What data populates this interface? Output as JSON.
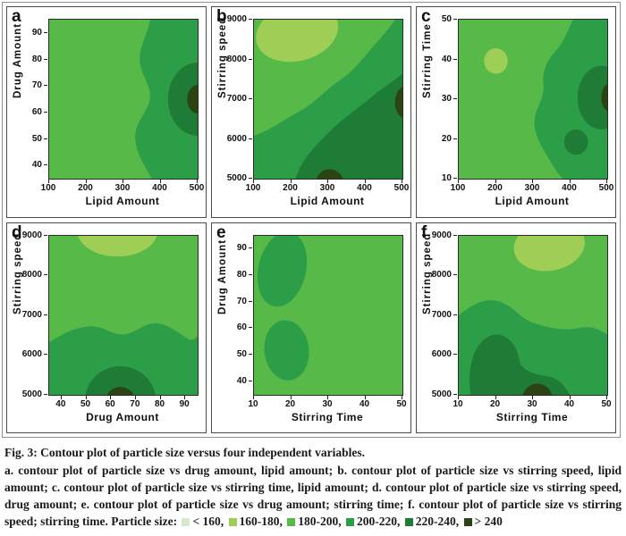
{
  "figure": {
    "panels": [
      {
        "letter": "a",
        "xlabel": "Lipid Amount",
        "ylabel": "Drug Amount",
        "xlim": [
          100,
          500
        ],
        "ylim": [
          35,
          95
        ],
        "xticks": [
          100,
          200,
          300,
          400,
          500
        ],
        "yticks": [
          40,
          50,
          60,
          70,
          80,
          90
        ]
      },
      {
        "letter": "b",
        "xlabel": "Lipid Amount",
        "ylabel": "Stirring speed",
        "xlim": [
          100,
          500
        ],
        "ylim": [
          5000,
          9000
        ],
        "xticks": [
          100,
          200,
          300,
          400,
          500
        ],
        "yticks": [
          5000,
          6000,
          7000,
          8000,
          9000
        ]
      },
      {
        "letter": "c",
        "xlabel": "Lipid Amount",
        "ylabel": "Stirring Time",
        "xlim": [
          100,
          500
        ],
        "ylim": [
          10,
          50
        ],
        "xticks": [
          100,
          200,
          300,
          400,
          500
        ],
        "yticks": [
          10,
          20,
          30,
          40,
          50
        ]
      },
      {
        "letter": "d",
        "xlabel": "Drug Amount",
        "ylabel": "Stirring speed",
        "xlim": [
          35,
          95
        ],
        "ylim": [
          5000,
          9000
        ],
        "xticks": [
          40,
          50,
          60,
          70,
          80,
          90
        ],
        "yticks": [
          5000,
          6000,
          7000,
          8000,
          9000
        ]
      },
      {
        "letter": "e",
        "xlabel": "Stirring Time",
        "ylabel": "Drug Amount",
        "xlim": [
          10,
          50
        ],
        "ylim": [
          35,
          95
        ],
        "xticks": [
          10,
          20,
          30,
          40,
          50
        ],
        "yticks": [
          40,
          50,
          60,
          70,
          80,
          90
        ]
      },
      {
        "letter": "f",
        "xlabel": "Stirring Time",
        "ylabel": "Stirring speed",
        "xlim": [
          10,
          50
        ],
        "ylim": [
          5000,
          9000
        ],
        "xticks": [
          10,
          20,
          30,
          40,
          50
        ],
        "yticks": [
          5000,
          6000,
          7000,
          8000,
          9000
        ]
      }
    ]
  },
  "legend": {
    "title": "Particle size:",
    "bins": [
      {
        "label": "< 160",
        "color": "#d7e8d0"
      },
      {
        "label": "160-180",
        "color": "#9fce56"
      },
      {
        "label": "180-200",
        "color": "#57ba48"
      },
      {
        "label": "200-220",
        "color": "#2d9e48"
      },
      {
        "label": "220-240",
        "color": "#1e7c37"
      },
      {
        "label": "> 240",
        "color": "#2c4314"
      }
    ]
  },
  "caption": {
    "title": "Fig. 3: Contour plot of particle size versus four independent variables.",
    "body": "a. contour plot of particle size vs drug amount, lipid amount; b. contour plot of particle size vs stirring speed, lipid amount; c. contour plot of particle size vs stirring time, lipid amount; d. contour plot of particle size vs stirring speed, drug amount; e. contour plot of particle size vs drug amount; stirring time; f. contour plot of particle size vs stirring speed; stirring time."
  },
  "chart_data": [
    {
      "type": "heatmap",
      "subtype": "contour",
      "panel": "a",
      "xlabel": "Lipid Amount",
      "ylabel": "Drug Amount",
      "xlim": [
        100,
        500
      ],
      "ylim": [
        35,
        95
      ],
      "xticks": [
        100,
        200,
        300,
        400,
        500
      ],
      "yticks": [
        40,
        50,
        60,
        70,
        80,
        90
      ],
      "levels": [
        "< 160",
        "160-180",
        "180-200",
        "200-220",
        "220-240",
        "> 240"
      ],
      "regions": [
        {
          "level": "180-200",
          "where": "left portion, lipid 100-370"
        },
        {
          "level": "200-220",
          "where": "right portion, lipid 370-500, wavy boundary"
        },
        {
          "level": "220-240",
          "where": "blob at right edge centered near lipid 500, drug 65"
        },
        {
          "level": "> 240",
          "where": "small core at right edge near lipid 500, drug 65"
        }
      ]
    },
    {
      "type": "heatmap",
      "subtype": "contour",
      "panel": "b",
      "xlabel": "Lipid Amount",
      "ylabel": "Stirring speed",
      "xlim": [
        100,
        500
      ],
      "ylim": [
        5000,
        9000
      ],
      "xticks": [
        100,
        200,
        300,
        400,
        500
      ],
      "yticks": [
        5000,
        6000,
        7000,
        8000,
        9000
      ],
      "levels": [
        "< 160",
        "160-180",
        "180-200",
        "200-220",
        "220-240",
        "> 240"
      ],
      "regions": [
        {
          "level": "160-180",
          "where": "blob top-left, lipid 120-320, speed 7900-9000"
        },
        {
          "level": "180-200",
          "where": "upper-left background"
        },
        {
          "level": "200-220",
          "where": "diagonal band from lower-left to upper-right"
        },
        {
          "level": "220-240",
          "where": "bottom-right region, lipid > 220 at speed 5000 rising to speed 7600 at lipid 500"
        },
        {
          "level": "> 240",
          "where": "small blobs near (300, 5000) and (500, 7000)"
        }
      ]
    },
    {
      "type": "heatmap",
      "subtype": "contour",
      "panel": "c",
      "xlabel": "Lipid Amount",
      "ylabel": "Stirring Time",
      "xlim": [
        100,
        500
      ],
      "ylim": [
        10,
        50
      ],
      "xticks": [
        100,
        200,
        300,
        400,
        500
      ],
      "yticks": [
        10,
        20,
        30,
        40,
        50
      ],
      "levels": [
        "< 160",
        "160-180",
        "180-200",
        "200-220",
        "220-240",
        "> 240"
      ],
      "regions": [
        {
          "level": "160-180",
          "where": "small spot near lipid 200, time 40"
        },
        {
          "level": "180-200",
          "where": "left two-thirds background"
        },
        {
          "level": "200-220",
          "where": "right of lipid ~360, wavy boundary"
        },
        {
          "level": "220-240",
          "where": "large blob near (480, 30) and small spot near (415, 19)"
        },
        {
          "level": "> 240",
          "where": "sliver at right edge near time 30"
        }
      ]
    },
    {
      "type": "heatmap",
      "subtype": "contour",
      "panel": "d",
      "xlabel": "Drug Amount",
      "ylabel": "Stirring speed",
      "xlim": [
        35,
        95
      ],
      "ylim": [
        5000,
        9000
      ],
      "xticks": [
        40,
        50,
        60,
        70,
        80,
        90
      ],
      "yticks": [
        5000,
        6000,
        7000,
        8000,
        9000
      ],
      "levels": [
        "< 160",
        "160-180",
        "180-200",
        "200-220",
        "220-240",
        "> 240"
      ],
      "regions": [
        {
          "level": "160-180",
          "where": "bulge at top center near drug 60-65, speed 9000"
        },
        {
          "level": "180-200",
          "where": "upper background"
        },
        {
          "level": "200-220",
          "where": "below speed ~6400"
        },
        {
          "level": "220-240",
          "where": "semicircle at bottom center near drug 65"
        },
        {
          "level": "> 240",
          "where": "core at bottom edge near drug 65, speed 5000"
        }
      ]
    },
    {
      "type": "heatmap",
      "subtype": "contour",
      "panel": "e",
      "xlabel": "Stirring Time",
      "ylabel": "Drug Amount",
      "xlim": [
        10,
        50
      ],
      "ylim": [
        35,
        95
      ],
      "xticks": [
        10,
        20,
        30,
        40,
        50
      ],
      "yticks": [
        40,
        50,
        60,
        70,
        80,
        90
      ],
      "levels": [
        "< 160",
        "160-180",
        "180-200",
        "200-220",
        "220-240",
        "> 240"
      ],
      "regions": [
        {
          "level": "180-200",
          "where": "uniform background"
        },
        {
          "level": "200-220",
          "where": "two blobs near (time 18, drug 80) and (time 20, drug 50)"
        }
      ]
    },
    {
      "type": "heatmap",
      "subtype": "contour",
      "panel": "f",
      "xlabel": "Stirring Time",
      "ylabel": "Stirring speed",
      "xlim": [
        10,
        50
      ],
      "ylim": [
        5000,
        9000
      ],
      "xticks": [
        10,
        20,
        30,
        40,
        50
      ],
      "yticks": [
        5000,
        6000,
        7000,
        8000,
        9000
      ],
      "levels": [
        "< 160",
        "160-180",
        "180-200",
        "200-220",
        "220-240",
        "> 240"
      ],
      "regions": [
        {
          "level": "160-180",
          "where": "blob top-right, time 30-45, speed 8000-9000"
        },
        {
          "level": "180-200",
          "where": "upper background"
        },
        {
          "level": "200-220",
          "where": "below speed ~6900"
        },
        {
          "level": "220-240",
          "where": "bottom-left region, time 15-35"
        },
        {
          "level": "> 240",
          "where": "core near time 30, speed 5000"
        }
      ]
    }
  ]
}
